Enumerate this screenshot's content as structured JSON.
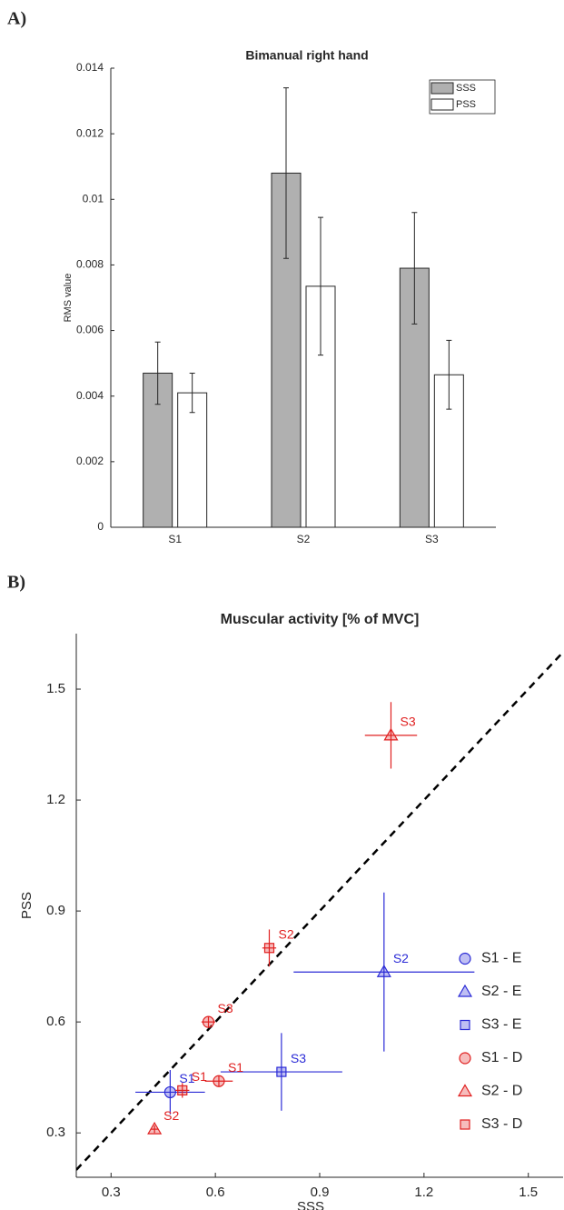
{
  "chart_data": [
    {
      "type": "bar",
      "panel_label": "A)",
      "title": "Bimanual right hand",
      "ylabel": "RMS value",
      "categories": [
        "S1",
        "S2",
        "S3"
      ],
      "series": [
        {
          "name": "SSS",
          "color": "#b0b0b0",
          "values": [
            0.0047,
            0.0108,
            0.0079
          ],
          "errors": [
            0.00095,
            0.0026,
            0.0017
          ]
        },
        {
          "name": "PSS",
          "color": "#ffffff",
          "values": [
            0.0041,
            0.00735,
            0.00465
          ],
          "errors": [
            0.0006,
            0.0021,
            0.00105
          ]
        }
      ],
      "ylim": [
        0,
        0.014
      ],
      "yticks": [
        0,
        0.002,
        0.004,
        0.006,
        0.008,
        0.01,
        0.012,
        0.014
      ],
      "legend_loc": "upper right"
    },
    {
      "type": "scatter",
      "panel_label": "B)",
      "title": "Muscular activity [% of MVC]",
      "xlabel": "SSS",
      "ylabel": "PSS",
      "identity_line": true,
      "series": [
        {
          "name": "S1 - E",
          "color": "#2b2bd6",
          "marker": "circle",
          "x": [
            0.47
          ],
          "values": [
            0.41
          ],
          "xerr": [
            0.1
          ],
          "yerr": [
            0.06
          ],
          "point_labels": [
            "S1"
          ]
        },
        {
          "name": "S2 - E",
          "color": "#2b2bd6",
          "marker": "triangle",
          "x": [
            1.085
          ],
          "values": [
            0.735
          ],
          "xerr": [
            0.26
          ],
          "yerr": [
            0.215
          ],
          "point_labels": [
            "S2"
          ]
        },
        {
          "name": "S3 - E",
          "color": "#2b2bd6",
          "marker": "square",
          "x": [
            0.79
          ],
          "values": [
            0.465
          ],
          "xerr": [
            0.175
          ],
          "yerr": [
            0.105
          ],
          "point_labels": [
            "S3"
          ]
        },
        {
          "name": "S1 - D",
          "color": "#e02020",
          "marker": "circle",
          "x": [
            0.61,
            0.58
          ],
          "values": [
            0.44,
            0.6
          ],
          "xerr": [
            0.04,
            0.02
          ],
          "yerr": [
            0.015,
            0.015
          ],
          "point_labels": [
            "S1",
            "S3"
          ]
        },
        {
          "name": "S2 - D",
          "color": "#e02020",
          "marker": "triangle",
          "x": [
            0.425,
            1.105
          ],
          "values": [
            0.31,
            1.375
          ],
          "xerr": [
            0.01,
            0.075
          ],
          "yerr": [
            0.01,
            0.09
          ],
          "point_labels": [
            "S2",
            "S3"
          ]
        },
        {
          "name": "S3 - D",
          "color": "#e02020",
          "marker": "square",
          "x": [
            0.505,
            0.755
          ],
          "values": [
            0.415,
            0.8
          ],
          "xerr": [
            0.02,
            0.02
          ],
          "yerr": [
            0.02,
            0.05
          ],
          "point_labels": [
            "S1",
            "S2"
          ]
        }
      ],
      "xlim": [
        0.2,
        1.6
      ],
      "xticks": [
        0.3,
        0.6,
        0.9,
        1.2,
        1.5
      ],
      "ylim": [
        0.18,
        1.65
      ],
      "yticks": [
        0.3,
        0.6,
        0.9,
        1.2,
        1.5
      ],
      "legend_loc": "lower right"
    }
  ]
}
